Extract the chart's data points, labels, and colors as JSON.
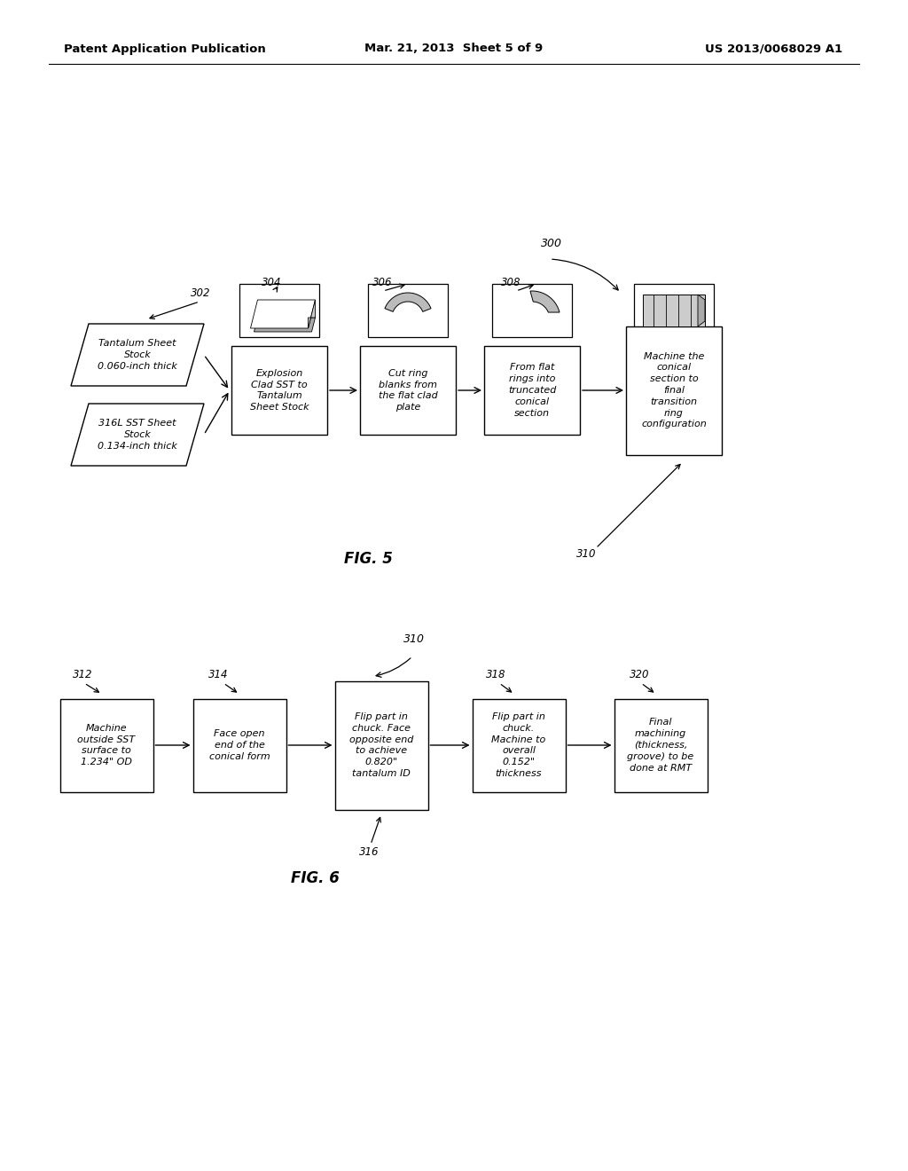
{
  "background_color": "#ffffff",
  "header_left": "Patent Application Publication",
  "header_mid": "Mar. 21, 2013  Sheet 5 of 9",
  "header_right": "US 2013/0068029 A1",
  "fig5_label": "FIG. 5",
  "fig6_label": "FIG. 6",
  "fig5_ref": "300",
  "fig5_310": "310",
  "fig5_302": "302",
  "fig5_304": "304",
  "fig5_306": "306",
  "fig5_308": "308",
  "fig5_box1_text": "Tantalum Sheet\nStock\n0.060-inch thick",
  "fig5_box2_text": "316L SST Sheet\nStock\n0.134-inch thick",
  "fig5_box3_text": "Explosion\nClad SST to\nTantalum\nSheet Stock",
  "fig5_box4_text": "Cut ring\nblanks from\nthe flat clad\nplate",
  "fig5_box5_text": "From flat\nrings into\ntruncated\nconical\nsection",
  "fig5_box6_text": "Machine the\nconical\nsection to\nfinal\ntransition\nring\nconfiguration",
  "fig6_ref": "310",
  "fig6_312": "312",
  "fig6_314": "314",
  "fig6_316": "316",
  "fig6_318": "318",
  "fig6_320": "320",
  "fig6_box1_text": "Machine\noutside SST\nsurface to\n1.234\" OD",
  "fig6_box2_text": "Face open\nend of the\nconical form",
  "fig6_box3_text": "Flip part in\nchuck. Face\nopposite end\nto achieve\n0.820\"\ntantalum ID",
  "fig6_box4_text": "Flip part in\nchuck.\nMachine to\noverall\n0.152\"\nthickness",
  "fig6_box5_text": "Final\nmachining\n(thickness,\ngroove) to be\ndone at RMT"
}
